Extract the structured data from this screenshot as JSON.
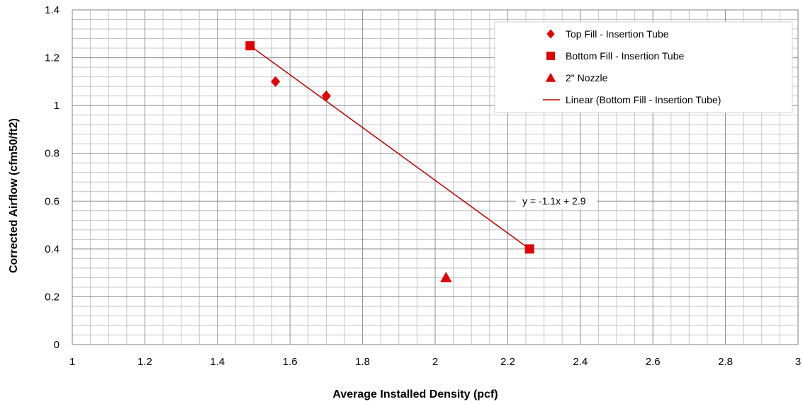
{
  "chart_data": {
    "type": "scatter",
    "xlabel": "Average Installed Density (pcf)",
    "ylabel": "Corrected Airflow (cfm50/ft2)",
    "xlim": [
      1,
      3
    ],
    "ylim": [
      0,
      1.4
    ],
    "x_ticks": [
      "1",
      "1.2",
      "1.4",
      "1.6",
      "1.8",
      "2",
      "2.2",
      "2.4",
      "2.6",
      "2.8",
      "3"
    ],
    "y_ticks": [
      "0",
      "0.2",
      "0.4",
      "0.6",
      "0.8",
      "1",
      "1.2",
      "1.4"
    ],
    "grid": true,
    "legend_position": "top-right",
    "series": [
      {
        "name": "Top Fill - Insertion Tube",
        "marker": "diamond",
        "color": "#e00000",
        "points": [
          {
            "x": 1.56,
            "y": 1.1
          },
          {
            "x": 1.7,
            "y": 1.04
          }
        ]
      },
      {
        "name": "Bottom Fill - Insertion Tube",
        "marker": "square",
        "color": "#e00000",
        "points": [
          {
            "x": 1.49,
            "y": 1.25
          },
          {
            "x": 2.26,
            "y": 0.4
          }
        ]
      },
      {
        "name": "2\" Nozzle",
        "marker": "triangle",
        "color": "#e00000",
        "points": [
          {
            "x": 2.03,
            "y": 0.28
          }
        ]
      }
    ],
    "trendline": {
      "name": "Linear (Bottom Fill - Insertion Tube)",
      "color": "#c00000",
      "x_from": 1.49,
      "y_from": 1.25,
      "x_to": 2.26,
      "y_to": 0.4,
      "equation": "y = -1.1x + 2.9"
    }
  }
}
